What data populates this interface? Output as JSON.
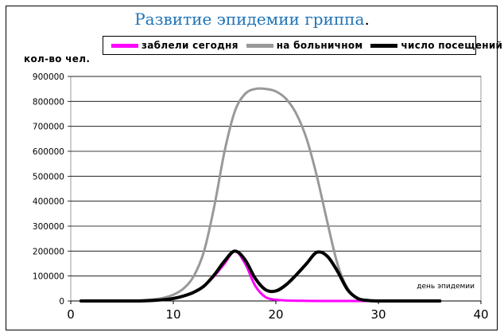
{
  "chart_data": {
    "type": "line",
    "title": "Развитие эпидемии гриппа",
    "title_suffix": ".",
    "ylabel": "кол-во чел.",
    "xlabel": "день эпидемии",
    "xlim": [
      0,
      40
    ],
    "ylim": [
      0,
      900000
    ],
    "xticks": [
      0,
      10,
      20,
      30,
      40
    ],
    "yticks": [
      0,
      100000,
      200000,
      300000,
      400000,
      500000,
      600000,
      700000,
      800000,
      900000
    ],
    "grid": "horizontal",
    "legend_position": "top",
    "x": [
      1,
      2,
      3,
      4,
      5,
      6,
      7,
      8,
      9,
      10,
      11,
      12,
      13,
      14,
      15,
      16,
      17,
      18,
      19,
      20,
      21,
      22,
      23,
      24,
      25,
      26,
      27,
      28,
      29,
      30,
      31,
      32,
      33,
      34,
      35,
      36
    ],
    "series": [
      {
        "name": "заблели сегодня",
        "color": "#ff00ff",
        "values": [
          0,
          0,
          0,
          0,
          0,
          100,
          500,
          2000,
          5000,
          10000,
          20000,
          35000,
          60000,
          100000,
          150000,
          200000,
          150000,
          60000,
          15000,
          5000,
          2000,
          1000,
          500,
          200,
          100,
          0,
          0,
          0,
          0,
          0,
          0,
          0,
          0,
          0,
          0,
          0
        ]
      },
      {
        "name": "на больничном",
        "color": "#999999",
        "values": [
          0,
          0,
          0,
          0,
          0,
          1000,
          3000,
          6000,
          12000,
          25000,
          50000,
          100000,
          200000,
          380000,
          600000,
          760000,
          830000,
          850000,
          850000,
          840000,
          810000,
          750000,
          650000,
          500000,
          320000,
          150000,
          50000,
          10000,
          2000,
          0,
          0,
          0,
          0,
          0,
          0,
          0
        ]
      },
      {
        "name": "число посещений",
        "color": "#000000",
        "values": [
          0,
          0,
          0,
          0,
          0,
          100,
          500,
          2000,
          5000,
          10000,
          20000,
          35000,
          60000,
          105000,
          160000,
          200000,
          165000,
          90000,
          45000,
          40000,
          65000,
          105000,
          150000,
          195000,
          180000,
          120000,
          45000,
          10000,
          2000,
          0,
          0,
          0,
          0,
          0,
          0,
          0
        ]
      }
    ]
  }
}
